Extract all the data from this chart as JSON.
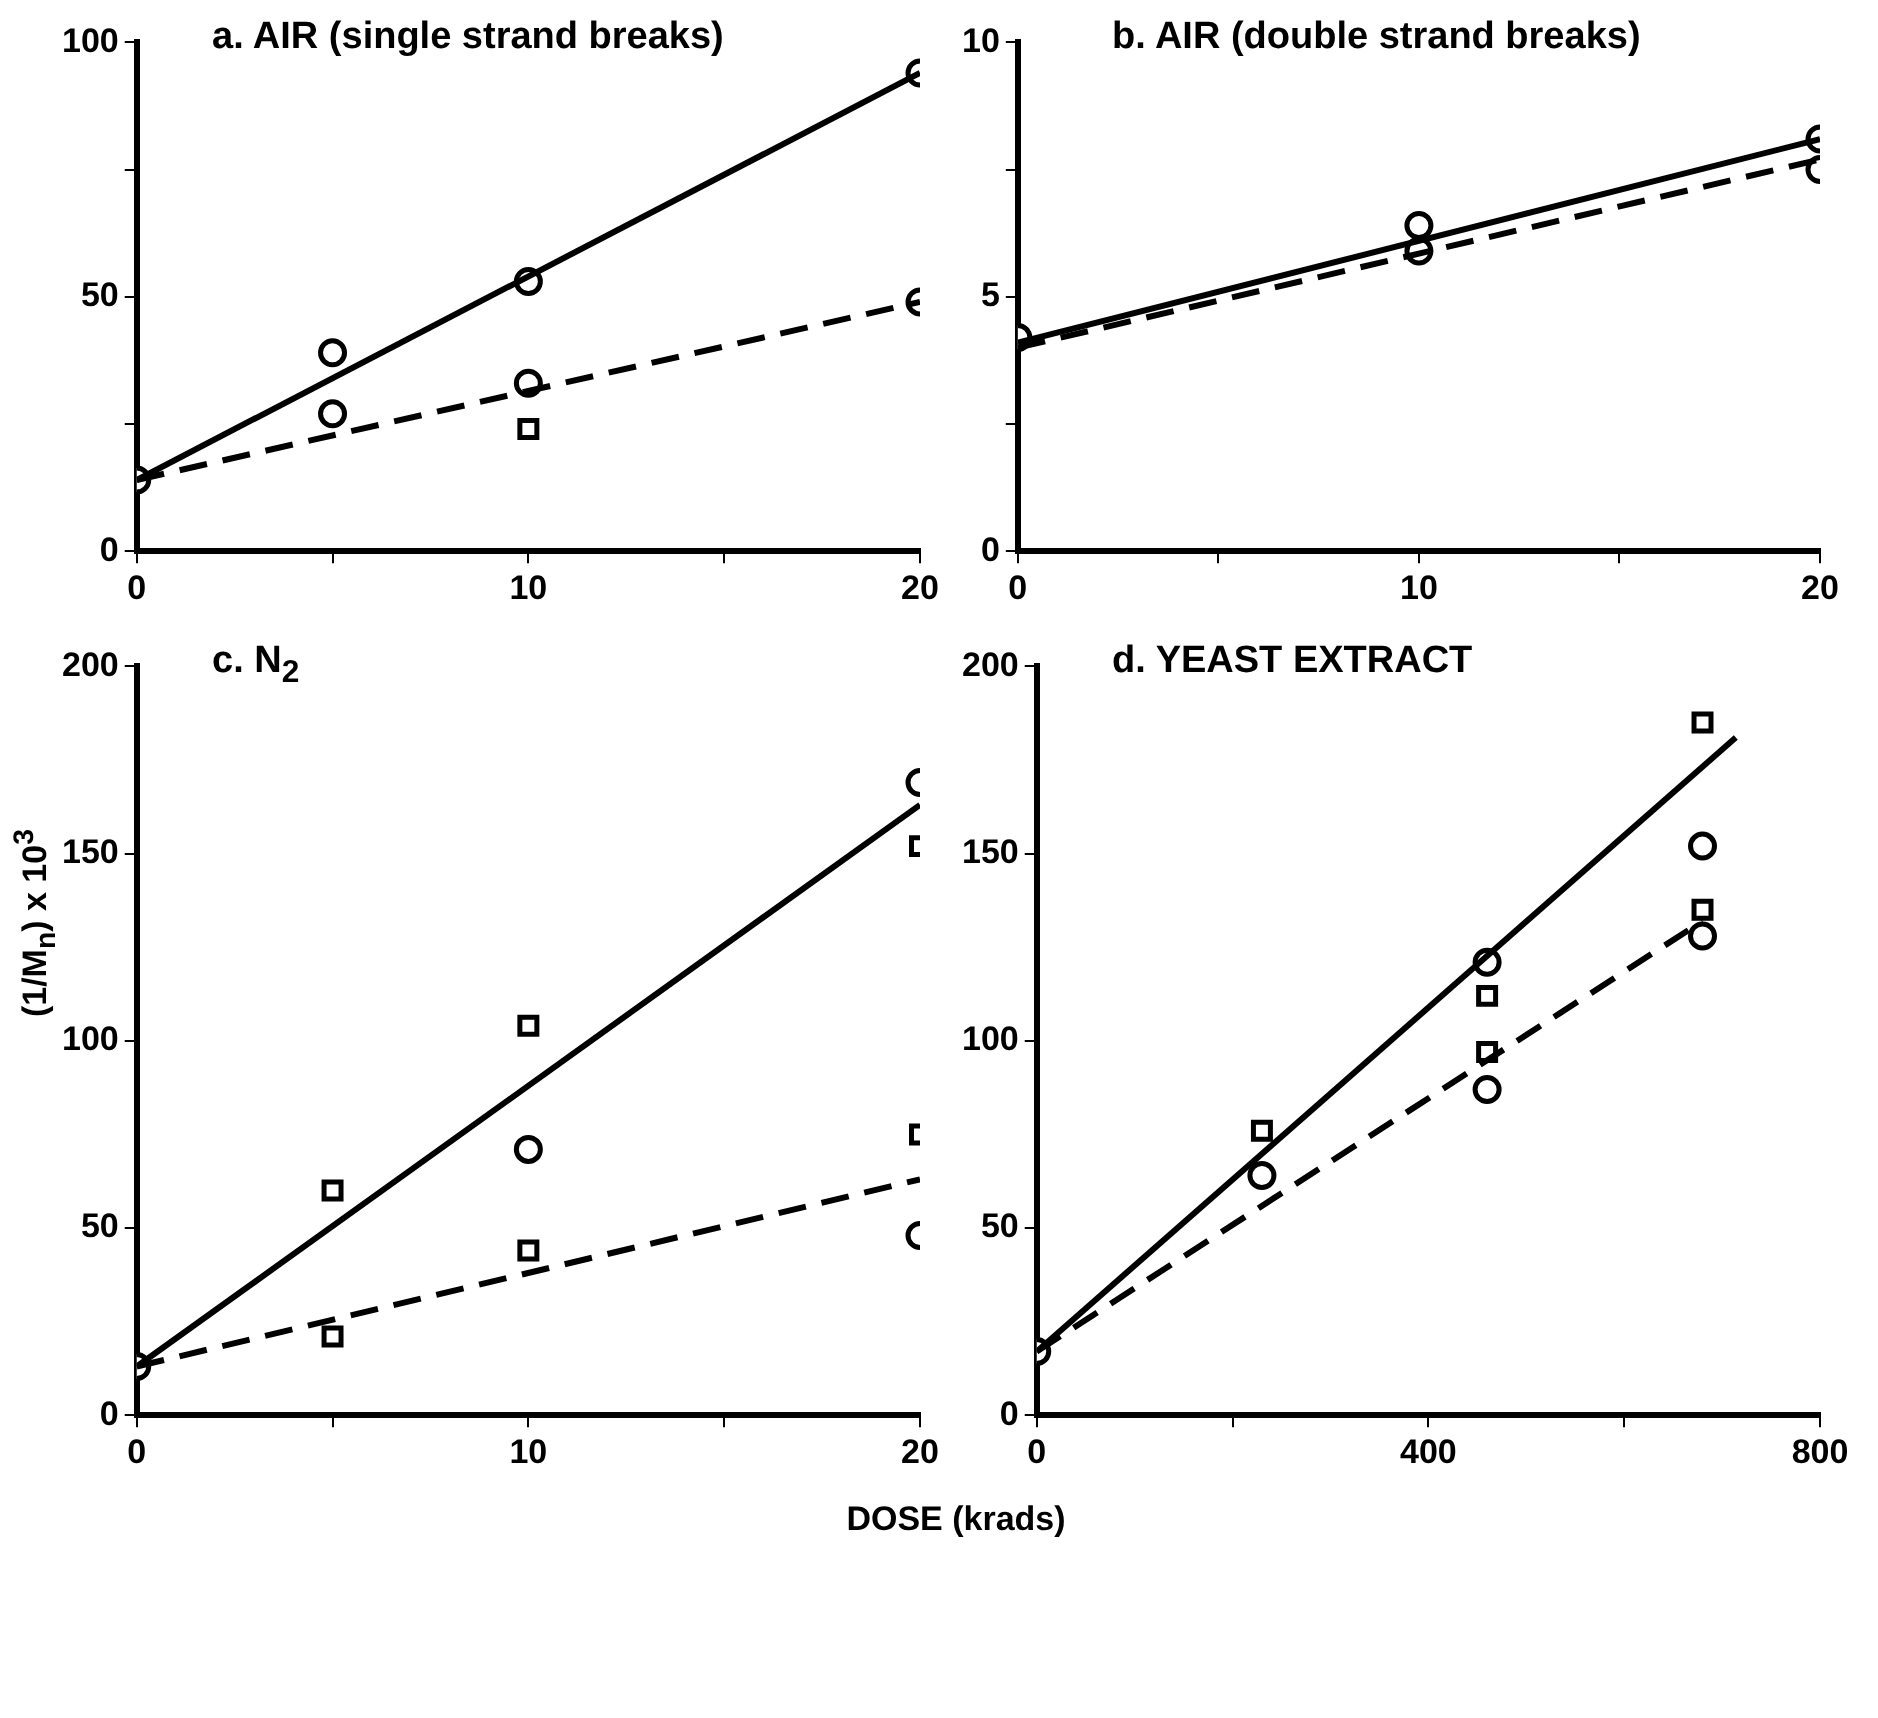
{
  "chart_data": [
    {
      "type": "scatter",
      "title": "a. AIR (single strand breaks)",
      "xlim": [
        0,
        20
      ],
      "xticks": [
        0,
        {
          "value": 5,
          "label": null
        },
        10,
        {
          "value": 15,
          "label": null
        },
        20
      ],
      "ylim": [
        0,
        100
      ],
      "yticks": [
        0,
        {
          "value": 25,
          "label": null
        },
        50,
        {
          "value": 75,
          "label": null
        },
        100
      ],
      "grid": false,
      "legend": false,
      "series": [
        {
          "type": "scatter",
          "marker": "circle",
          "color": "#000000",
          "x": [
            0,
            5,
            5,
            10,
            10,
            20,
            20
          ],
          "values": [
            14,
            39,
            27,
            53,
            33,
            94,
            49
          ]
        },
        {
          "type": "scatter",
          "marker": "square",
          "color": "#000000",
          "x": [
            10
          ],
          "values": [
            24
          ]
        },
        {
          "type": "line",
          "line_style": "solid",
          "color": "#000000",
          "x": [
            0,
            20
          ],
          "values": [
            14,
            94
          ]
        },
        {
          "type": "line",
          "line_style": "dashed",
          "color": "#000000",
          "x": [
            0,
            20
          ],
          "values": [
            14,
            49
          ]
        }
      ]
    },
    {
      "type": "scatter",
      "title": "b. AIR (double strand breaks)",
      "xlim": [
        0,
        20
      ],
      "xticks": [
        0,
        {
          "value": 5,
          "label": null
        },
        10,
        {
          "value": 15,
          "label": null
        },
        20
      ],
      "ylim": [
        0,
        10
      ],
      "yticks": [
        0,
        {
          "value": 2.5,
          "label": null
        },
        5,
        {
          "value": 7.5,
          "label": null
        },
        10
      ],
      "grid": false,
      "legend": false,
      "series": [
        {
          "type": "scatter",
          "marker": "circle",
          "color": "#000000",
          "x": [
            0,
            10,
            10,
            20,
            20
          ],
          "values": [
            4.2,
            6.4,
            5.9,
            8.1,
            7.5
          ]
        },
        {
          "type": "line",
          "line_style": "solid",
          "color": "#000000",
          "x": [
            0,
            20
          ],
          "values": [
            4.1,
            8.1
          ]
        },
        {
          "type": "line",
          "line_style": "dashed",
          "color": "#000000",
          "x": [
            0,
            20
          ],
          "values": [
            4,
            7.7
          ]
        }
      ]
    },
    {
      "type": "scatter",
      "title": "c. N$_{2}$",
      "ylabel": "(1/M$_{n}$) x 10$^{3}$",
      "xlabel": "DOSE (krads)",
      "xlim": [
        0,
        20
      ],
      "xticks": [
        0,
        {
          "value": 5,
          "label": null
        },
        10,
        {
          "value": 15,
          "label": null
        },
        20
      ],
      "ylim": [
        0,
        200
      ],
      "yticks": [
        0,
        50,
        100,
        150,
        200
      ],
      "grid": false,
      "legend": false,
      "series": [
        {
          "type": "scatter",
          "marker": "circle",
          "color": "#000000",
          "x": [
            0,
            10,
            20,
            20
          ],
          "values": [
            13,
            71,
            169,
            48
          ]
        },
        {
          "type": "scatter",
          "marker": "square",
          "color": "#000000",
          "x": [
            5,
            5,
            10,
            10,
            20,
            20
          ],
          "values": [
            60,
            21,
            104,
            44,
            152,
            75
          ]
        },
        {
          "type": "line",
          "line_style": "solid",
          "color": "#000000",
          "x": [
            0,
            20
          ],
          "values": [
            13,
            163
          ]
        },
        {
          "type": "line",
          "line_style": "dashed",
          "color": "#000000",
          "x": [
            0,
            20
          ],
          "values": [
            13,
            63
          ]
        }
      ]
    },
    {
      "type": "scatter",
      "title": "d. YEAST EXTRACT",
      "xlim": [
        0,
        800
      ],
      "xticks": [
        0,
        {
          "value": 200,
          "label": null
        },
        400,
        {
          "value": 600,
          "label": null
        },
        800
      ],
      "ylim": [
        0,
        200
      ],
      "yticks": [
        0,
        50,
        100,
        150,
        200
      ],
      "grid": false,
      "legend": false,
      "series": [
        {
          "type": "scatter",
          "marker": "circle",
          "color": "#000000",
          "x": [
            0,
            230,
            460,
            460,
            680,
            680
          ],
          "values": [
            17,
            64,
            121,
            87,
            152,
            128
          ]
        },
        {
          "type": "scatter",
          "marker": "square",
          "color": "#000000",
          "x": [
            230,
            460,
            460,
            680,
            680
          ],
          "values": [
            76,
            112,
            97,
            185,
            135
          ]
        },
        {
          "type": "line",
          "line_style": "solid",
          "color": "#000000",
          "x": [
            0,
            714
          ],
          "values": [
            17,
            181
          ]
        },
        {
          "type": "line",
          "line_style": "dashed",
          "color": "#000000",
          "x": [
            0,
            680
          ],
          "values": [
            17,
            132
          ]
        }
      ]
    }
  ]
}
